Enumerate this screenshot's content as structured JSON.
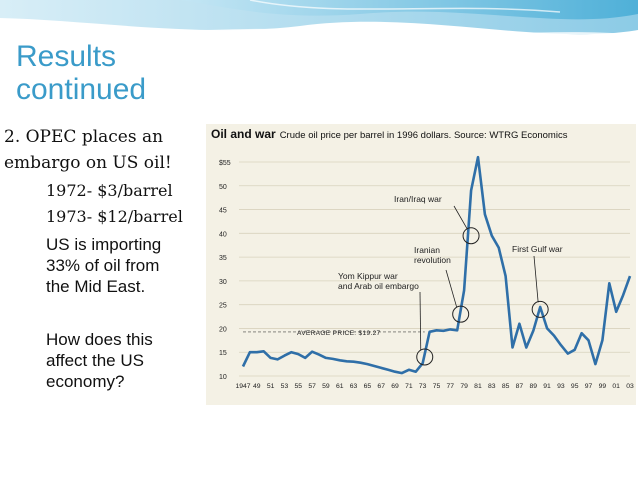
{
  "slide": {
    "title_lines": [
      "Results",
      "continued"
    ],
    "bullets": {
      "main": [
        "2. OPEC places an",
        "embargo on US oil!"
      ],
      "sub": [
        "1972- $3/barrel",
        "1973- $12/barrel"
      ],
      "importing": [
        "US is importing",
        "33% of oil from",
        "the Mid East."
      ],
      "question": [
        "How does this",
        "affect the US",
        "economy?"
      ]
    },
    "colors": {
      "title": "#3a9bc9",
      "banner": "#5fb8dc",
      "line": "#2f6fa8",
      "panel": "#f4f1e5"
    }
  },
  "chart_data": {
    "type": "line",
    "title": "Oil and war",
    "subtitle": "Crude oil price per barrel in 1996 dollars. Source: WTRG Economics",
    "xlim": [
      1947,
      2003
    ],
    "ylim": [
      10,
      55
    ],
    "yticks": [
      "$55",
      "50",
      "45",
      "40",
      "35",
      "30",
      "25",
      "20",
      "15",
      "10"
    ],
    "xticks": [
      "1947",
      "49",
      "51",
      "53",
      "55",
      "57",
      "59",
      "61",
      "63",
      "65",
      "67",
      "69",
      "71",
      "73",
      "75",
      "77",
      "79",
      "81",
      "83",
      "85",
      "87",
      "89",
      "91",
      "93",
      "95",
      "97",
      "99",
      "01",
      "03"
    ],
    "reference_line": {
      "label": "AVERAGE PRICE: $19.27",
      "value": 19.27
    },
    "series": [
      {
        "x": [
          1947,
          1948,
          1949,
          1950,
          1951,
          1952,
          1953,
          1954,
          1955,
          1956,
          1957,
          1958,
          1959,
          1960,
          1961,
          1962,
          1963,
          1964,
          1965,
          1966,
          1967,
          1968,
          1969,
          1970,
          1971,
          1972,
          1973,
          1974,
          1975,
          1976,
          1977,
          1978,
          1979,
          1980,
          1981,
          1982,
          1983,
          1984,
          1985,
          1986,
          1987,
          1988,
          1989,
          1990,
          1991,
          1992,
          1993,
          1994,
          1995,
          1996,
          1997,
          1998,
          1999,
          2000,
          2001,
          2002,
          2003
        ],
        "y": [
          12.0,
          15.0,
          15.0,
          15.2,
          13.8,
          13.5,
          14.3,
          15.0,
          14.6,
          13.8,
          15.1,
          14.5,
          13.8,
          13.6,
          13.3,
          13.1,
          13.0,
          12.8,
          12.5,
          12.1,
          11.7,
          11.3,
          10.9,
          10.6,
          11.3,
          10.9,
          12.7,
          19.3,
          19.6,
          19.5,
          19.8,
          19.6,
          28.0,
          49.0,
          56.0,
          44.0,
          39.5,
          37.0,
          31.0,
          16.0,
          21.0,
          16.0,
          19.5,
          24.5,
          20.0,
          18.5,
          16.5,
          14.7,
          15.5,
          19.0,
          17.5,
          12.5,
          17.5,
          29.5,
          23.5,
          27.0,
          31.0
        ]
      }
    ],
    "annotations": [
      {
        "lines": [
          "Iran/Iraq war"
        ],
        "x": 1980,
        "y": 39.5
      },
      {
        "lines": [
          "Iranian",
          "revolution"
        ],
        "x": 1978.5,
        "y": 23
      },
      {
        "lines": [
          "Yom Kippur war",
          "and Arab oil embargo"
        ],
        "x": 1973.3,
        "y": 14
      },
      {
        "lines": [
          "First Gulf war"
        ],
        "x": 1990,
        "y": 24
      }
    ],
    "grid": true
  }
}
